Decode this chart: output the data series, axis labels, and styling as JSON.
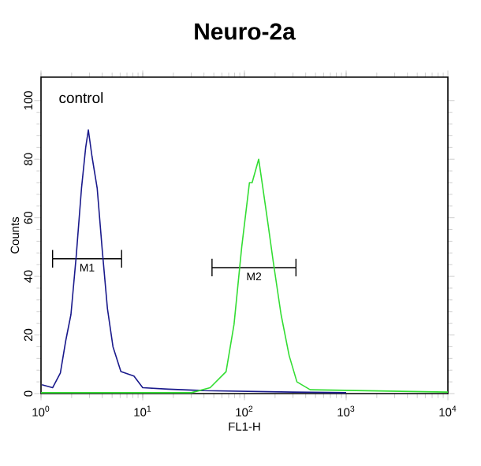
{
  "chart_data": {
    "type": "line",
    "title": "Neuro-2a",
    "xlabel": "FL1-H",
    "ylabel": "Counts",
    "log": "x",
    "xlim": [
      1,
      10000
    ],
    "ylim": [
      0,
      108
    ],
    "xticks": [
      {
        "value": 1,
        "label": "10$^{0}$"
      },
      {
        "value": 10,
        "label": "10$^{1}$"
      },
      {
        "value": 100,
        "label": "10$^{2}$"
      },
      {
        "value": 1000,
        "label": "10$^{3}$"
      },
      {
        "value": 10000,
        "label": "10$^{4}$"
      }
    ],
    "yticks": [
      0,
      20,
      40,
      60,
      80,
      100
    ],
    "grid": false,
    "marker": "none",
    "line_style": "solid",
    "annotations": [
      "control"
    ],
    "series": [
      {
        "name": "M1",
        "color": "#000000",
        "x": [
          1.3,
          6.2
        ],
        "values": [
          46,
          46
        ],
        "errors": [
          3,
          3
        ]
      },
      {
        "name": "M2",
        "color": "#000000",
        "x": [
          48,
          321
        ],
        "values": [
          43,
          43
        ],
        "errors": [
          3,
          3
        ]
      },
      {
        "color": "#1a1a8c",
        "x": [
          1.02,
          1.3,
          1.55,
          1.75,
          1.97,
          2.22,
          2.5,
          2.75,
          2.92,
          3.17,
          3.57,
          4.0,
          4.5,
          5.1,
          6.1,
          8.2,
          10,
          17.8,
          40,
          300,
          1000
        ],
        "values": [
          3,
          2,
          7,
          18,
          27,
          47,
          70,
          84,
          90,
          81,
          70,
          49,
          29,
          16,
          7.5,
          6,
          2,
          1.5,
          1,
          0.5,
          0.3
        ]
      },
      {
        "color": "#33dd33",
        "x": [
          1,
          30,
          46,
          66,
          79,
          94,
          112,
          119,
          138,
          152,
          171,
          192,
          229,
          275,
          328,
          443,
          10000
        ],
        "values": [
          0.3,
          0.3,
          2,
          7.5,
          23.6,
          50,
          72,
          72,
          80,
          70,
          57.6,
          45,
          27,
          13,
          4,
          1.3,
          0.5
        ]
      }
    ]
  }
}
